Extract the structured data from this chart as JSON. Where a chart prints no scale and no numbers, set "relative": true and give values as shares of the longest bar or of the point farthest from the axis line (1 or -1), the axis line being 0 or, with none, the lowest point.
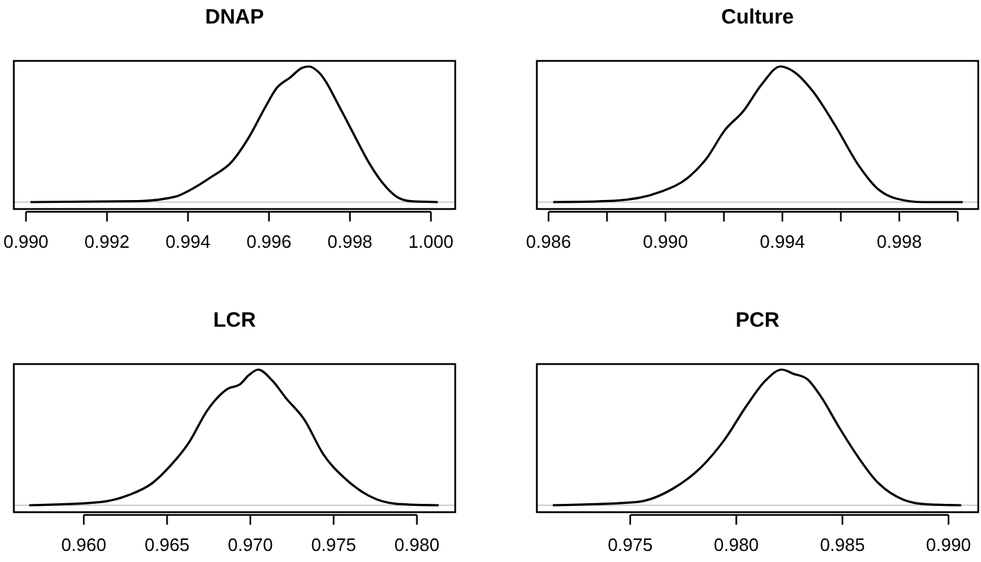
{
  "chart_data": [
    {
      "type": "line",
      "title": "DNAP",
      "relative": true,
      "color": "#000000",
      "xlim": [
        0.9897,
        1.0006
      ],
      "xticks": [
        {
          "value": 0.99,
          "label": "0.990"
        },
        0.992,
        0.994,
        0.996,
        0.998,
        {
          "value": 1.0,
          "label": "1.000"
        }
      ],
      "x": [
        0.99011,
        0.99278,
        0.99369,
        0.99403,
        0.9946,
        0.99506,
        0.99551,
        0.99591,
        0.99619,
        0.99653,
        0.99682,
        0.99699,
        0.99722,
        0.99778,
        0.99813,
        0.99847,
        0.99881,
        0.99915,
        0.99949,
        1.00017
      ],
      "values": [
        0,
        0.007,
        0.04,
        0.085,
        0.19,
        0.29,
        0.48,
        0.7,
        0.84,
        0.92,
        0.99,
        1,
        0.96,
        0.68,
        0.48,
        0.29,
        0.14,
        0.04,
        0.007,
        0
      ]
    },
    {
      "type": "line",
      "title": "Culture",
      "relative": true,
      "color": "#000000",
      "xlim": [
        0.9856,
        1.0007
      ],
      "xticks": [
        0.986,
        {
          "value": 0.988,
          "label": null
        },
        {
          "value": 0.99,
          "label": "0.990"
        },
        {
          "value": 0.992,
          "label": null
        },
        0.994,
        {
          "value": 0.996,
          "label": null
        },
        0.998,
        {
          "value": 1.0,
          "label": null
        }
      ],
      "x": [
        0.98616,
        0.98824,
        0.98982,
        0.99077,
        0.9914,
        0.99203,
        0.99266,
        0.9933,
        0.99393,
        0.9944,
        0.99503,
        0.99582,
        0.99661,
        0.99725,
        0.99788,
        0.99883,
        1.00017
      ],
      "values": [
        0,
        0.01,
        0.075,
        0.18,
        0.32,
        0.53,
        0.67,
        0.87,
        1,
        0.96,
        0.82,
        0.56,
        0.27,
        0.1,
        0.027,
        0,
        0
      ]
    },
    {
      "type": "line",
      "title": "LCR",
      "relative": true,
      "color": "#000000",
      "xlim": [
        0.9558,
        0.9823
      ],
      "xticks": [
        {
          "value": 0.96,
          "label": "0.960"
        },
        0.965,
        {
          "value": 0.97,
          "label": "0.970"
        },
        0.975,
        {
          "value": 0.98,
          "label": "0.980"
        }
      ],
      "x": [
        0.95672,
        0.96103,
        0.9627,
        0.96408,
        0.96519,
        0.9663,
        0.96742,
        0.96867,
        0.96936,
        0.96992,
        0.97047,
        0.97131,
        0.97214,
        0.97325,
        0.97436,
        0.97575,
        0.97714,
        0.97881,
        0.98131
      ],
      "values": [
        0,
        0.024,
        0.075,
        0.16,
        0.29,
        0.46,
        0.7,
        0.86,
        0.89,
        0.96,
        1,
        0.92,
        0.79,
        0.63,
        0.38,
        0.19,
        0.068,
        0.01,
        0
      ]
    },
    {
      "type": "line",
      "title": "PCR",
      "relative": true,
      "color": "#000000",
      "xlim": [
        0.9706,
        0.9914
      ],
      "xticks": [
        0.975,
        {
          "value": 0.98,
          "label": "0.980"
        },
        0.985,
        {
          "value": 0.99,
          "label": "0.990"
        }
      ],
      "x": [
        0.97135,
        0.9753,
        0.97704,
        0.97834,
        0.97943,
        0.98051,
        0.98138,
        0.98214,
        0.98268,
        0.98334,
        0.98399,
        0.98486,
        0.98572,
        0.98659,
        0.98789,
        0.98898,
        0.9906
      ],
      "values": [
        0,
        0.024,
        0.125,
        0.28,
        0.48,
        0.74,
        0.92,
        1,
        0.97,
        0.93,
        0.8,
        0.57,
        0.36,
        0.18,
        0.04,
        0.007,
        0
      ]
    }
  ]
}
